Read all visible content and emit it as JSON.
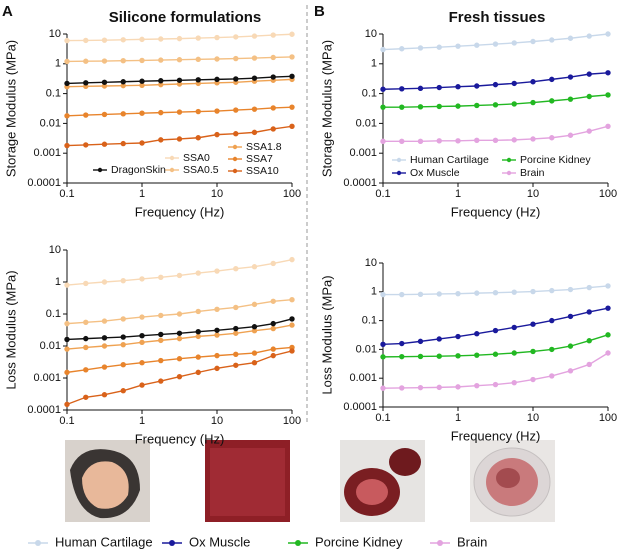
{
  "panels": [
    "A",
    "B"
  ],
  "chart_data": [
    {
      "type": "line",
      "title": "Silicone formulations",
      "xlabel": "Frequency (Hz)",
      "ylabel": "Storage Modulus  (MPa)",
      "xlog": true,
      "ylog": true,
      "legend": "lower",
      "xlim": [
        0.1,
        100
      ],
      "ylim": [
        0.0001,
        10
      ],
      "xticks": [
        0.1,
        1,
        10,
        100
      ],
      "yticks": [
        0.0001,
        0.001,
        0.01,
        0.1,
        1,
        10
      ],
      "x": [
        0.1,
        0.178,
        0.316,
        0.562,
        1,
        1.78,
        3.16,
        5.62,
        10,
        17.8,
        31.6,
        56.2,
        100
      ],
      "series": [
        {
          "name": "SSA0",
          "color": "#f8d9b6",
          "values": [
            6,
            6.1,
            6.2,
            6.4,
            6.6,
            6.8,
            7,
            7.3,
            7.6,
            8,
            8.5,
            9.2,
            9.8
          ]
        },
        {
          "name": "SSA0.5",
          "color": "#f4c084",
          "values": [
            1.2,
            1.22,
            1.24,
            1.27,
            1.3,
            1.33,
            1.37,
            1.41,
            1.45,
            1.5,
            1.56,
            1.63,
            1.7
          ]
        },
        {
          "name": "SSA1.8",
          "color": "#efa252",
          "values": [
            0.17,
            0.175,
            0.18,
            0.185,
            0.19,
            0.2,
            0.21,
            0.22,
            0.23,
            0.24,
            0.26,
            0.28,
            0.3
          ]
        },
        {
          "name": "SSA7",
          "color": "#e8842c",
          "values": [
            0.018,
            0.019,
            0.02,
            0.021,
            0.022,
            0.023,
            0.024,
            0.025,
            0.026,
            0.028,
            0.03,
            0.033,
            0.035
          ]
        },
        {
          "name": "SSA10",
          "color": "#d9621a",
          "values": [
            0.0018,
            0.0019,
            0.002,
            0.0021,
            0.0022,
            0.0028,
            0.003,
            0.0033,
            0.0042,
            0.0045,
            0.005,
            0.0065,
            0.008
          ]
        },
        {
          "name": "DragonSkin",
          "color": "#111111",
          "values": [
            0.22,
            0.23,
            0.24,
            0.25,
            0.26,
            0.27,
            0.28,
            0.29,
            0.3,
            0.31,
            0.33,
            0.36,
            0.38
          ]
        }
      ]
    },
    {
      "type": "line",
      "xlabel": "Frequency (Hz)",
      "ylabel": "Loss Modulus  (MPa)",
      "xlog": true,
      "ylog": true,
      "xlim": [
        0.1,
        100
      ],
      "ylim": [
        0.0001,
        10
      ],
      "xticks": [
        0.1,
        1,
        10,
        100
      ],
      "yticks": [
        0.0001,
        0.001,
        0.01,
        0.1,
        1,
        10
      ],
      "x": [
        0.1,
        0.178,
        0.316,
        0.562,
        1,
        1.78,
        3.16,
        5.62,
        10,
        17.8,
        31.6,
        56.2,
        100
      ],
      "series": [
        {
          "color": "#f8d9b6",
          "values": [
            0.8,
            0.9,
            1,
            1.1,
            1.25,
            1.4,
            1.6,
            1.9,
            2.2,
            2.6,
            3,
            3.8,
            5
          ]
        },
        {
          "color": "#f4c084",
          "values": [
            0.05,
            0.055,
            0.06,
            0.07,
            0.08,
            0.09,
            0.1,
            0.12,
            0.14,
            0.16,
            0.2,
            0.25,
            0.28
          ]
        },
        {
          "color": "#efa252",
          "values": [
            0.008,
            0.009,
            0.01,
            0.011,
            0.013,
            0.015,
            0.017,
            0.02,
            0.022,
            0.025,
            0.03,
            0.035,
            0.045
          ]
        },
        {
          "color": "#e8842c",
          "values": [
            0.0015,
            0.0018,
            0.0022,
            0.0026,
            0.003,
            0.0035,
            0.004,
            0.0045,
            0.005,
            0.0055,
            0.006,
            0.008,
            0.009
          ]
        },
        {
          "color": "#d9621a",
          "values": [
            0.00015,
            0.00025,
            0.0003,
            0.0004,
            0.0006,
            0.0008,
            0.0011,
            0.0015,
            0.002,
            0.0025,
            0.003,
            0.005,
            0.007
          ]
        },
        {
          "color": "#111111",
          "values": [
            0.016,
            0.017,
            0.018,
            0.019,
            0.021,
            0.023,
            0.025,
            0.028,
            0.031,
            0.035,
            0.04,
            0.05,
            0.07
          ]
        }
      ]
    },
    {
      "type": "line",
      "title": "Fresh tissues",
      "xlabel": "Frequency (Hz)",
      "ylabel": "Storage Modulus  (MPa)",
      "xlog": true,
      "ylog": true,
      "legend": "lower",
      "xlim": [
        0.1,
        100
      ],
      "ylim": [
        0.0001,
        10
      ],
      "xticks": [
        0.1,
        1,
        10,
        100
      ],
      "yticks": [
        0.0001,
        0.001,
        0.01,
        0.1,
        1,
        10
      ],
      "x": [
        0.1,
        0.178,
        0.316,
        0.562,
        1,
        1.78,
        3.16,
        5.62,
        10,
        17.8,
        31.6,
        56.2,
        100
      ],
      "series": [
        {
          "name": "Human Cartilage",
          "color": "#c8d8ea",
          "values": [
            3,
            3.2,
            3.4,
            3.6,
            3.9,
            4.2,
            4.6,
            5,
            5.6,
            6.3,
            7.2,
            8.5,
            10
          ]
        },
        {
          "name": "Ox Muscle",
          "color": "#1a1a9c",
          "values": [
            0.14,
            0.145,
            0.15,
            0.16,
            0.17,
            0.18,
            0.2,
            0.22,
            0.25,
            0.3,
            0.36,
            0.45,
            0.5
          ]
        },
        {
          "name": "Porcine Kidney",
          "color": "#22b822",
          "values": [
            0.035,
            0.035,
            0.036,
            0.037,
            0.038,
            0.04,
            0.042,
            0.045,
            0.05,
            0.057,
            0.065,
            0.08,
            0.09
          ]
        },
        {
          "name": "Brain",
          "color": "#e3a3df",
          "values": [
            0.0025,
            0.0025,
            0.0025,
            0.0026,
            0.0026,
            0.0027,
            0.0027,
            0.0028,
            0.003,
            0.0033,
            0.004,
            0.0055,
            0.008
          ]
        }
      ]
    },
    {
      "type": "line",
      "xlabel": "Frequency (Hz)",
      "ylabel": "Loss Modulus  (MPa)",
      "xlog": true,
      "ylog": true,
      "xlim": [
        0.1,
        100
      ],
      "ylim": [
        0.0001,
        10
      ],
      "xticks": [
        0.1,
        1,
        10,
        100
      ],
      "yticks": [
        0.0001,
        0.001,
        0.01,
        0.1,
        1,
        10
      ],
      "x": [
        0.1,
        0.178,
        0.316,
        0.562,
        1,
        1.78,
        3.16,
        5.62,
        10,
        17.8,
        31.6,
        56.2,
        100
      ],
      "series": [
        {
          "color": "#c8d8ea",
          "values": [
            0.8,
            0.8,
            0.82,
            0.84,
            0.86,
            0.9,
            0.93,
            0.97,
            1.02,
            1.1,
            1.2,
            1.4,
            1.6
          ]
        },
        {
          "color": "#1a1a9c",
          "values": [
            0.015,
            0.016,
            0.019,
            0.023,
            0.028,
            0.035,
            0.045,
            0.058,
            0.075,
            0.1,
            0.14,
            0.2,
            0.27
          ]
        },
        {
          "color": "#22b822",
          "values": [
            0.0055,
            0.0056,
            0.0057,
            0.0058,
            0.006,
            0.0063,
            0.0068,
            0.0075,
            0.0085,
            0.01,
            0.013,
            0.02,
            0.032
          ]
        },
        {
          "color": "#e3a3df",
          "values": [
            0.00045,
            0.00046,
            0.00047,
            0.00048,
            0.0005,
            0.00055,
            0.0006,
            0.0007,
            0.0009,
            0.0012,
            0.0018,
            0.003,
            0.0075
          ]
        }
      ]
    }
  ],
  "bottom_legend": [
    {
      "name": "Human Cartilage",
      "color": "#c8d8ea"
    },
    {
      "name": "Ox Muscle",
      "color": "#1a1a9c"
    },
    {
      "name": "Porcine Kidney",
      "color": "#22b822"
    },
    {
      "name": "Brain",
      "color": "#e3a3df"
    }
  ]
}
